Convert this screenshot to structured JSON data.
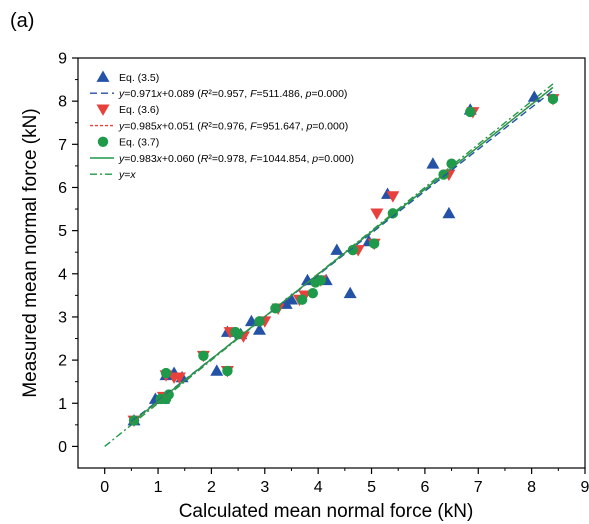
{
  "panel_label": "(a)",
  "colors": {
    "eq35": "#2452a6",
    "eq36": "#e8413c",
    "eq37": "#1f9a4a",
    "yx": "#1f9a4a",
    "axis": "#000000"
  },
  "chart_data": {
    "type": "scatter",
    "title": "",
    "xlabel": "Calculated mean normal force (kN)",
    "ylabel": "Measured mean normal force (kN)",
    "xlim": [
      -0.5,
      9
    ],
    "ylim": [
      -0.5,
      9
    ],
    "xticks": [
      "0",
      "1",
      "2",
      "3",
      "4",
      "5",
      "6",
      "7",
      "8",
      "9"
    ],
    "yticks": [
      "0",
      "1",
      "2",
      "3",
      "4",
      "5",
      "6",
      "7",
      "8",
      "9"
    ],
    "grid": false,
    "legend_position": "top-left",
    "series": [
      {
        "name": "Eq. (3.5)",
        "marker": "triangle-up",
        "color": "#2452a6",
        "fit_label": "y=0.971x+0.089 (R²=0.957, F=511.486, p=0.000)",
        "fit": {
          "slope": 0.971,
          "intercept": 0.089,
          "x_range": [
            0.5,
            8.4
          ],
          "style": "dashed"
        },
        "points": [
          [
            0.55,
            0.6
          ],
          [
            0.95,
            1.1
          ],
          [
            1.1,
            1.1
          ],
          [
            1.15,
            1.65
          ],
          [
            1.3,
            1.7
          ],
          [
            1.45,
            1.6
          ],
          [
            2.1,
            1.75
          ],
          [
            2.3,
            2.65
          ],
          [
            2.55,
            2.6
          ],
          [
            2.75,
            2.9
          ],
          [
            2.9,
            2.7
          ],
          [
            3.4,
            3.3
          ],
          [
            3.5,
            3.4
          ],
          [
            3.8,
            3.85
          ],
          [
            4.15,
            3.85
          ],
          [
            4.35,
            4.55
          ],
          [
            4.6,
            3.55
          ],
          [
            4.95,
            4.75
          ],
          [
            5.3,
            5.85
          ],
          [
            6.15,
            6.55
          ],
          [
            6.45,
            5.4
          ],
          [
            6.85,
            7.8
          ],
          [
            8.05,
            8.1
          ]
        ]
      },
      {
        "name": "Eq. (3.6)",
        "marker": "triangle-down",
        "color": "#e8413c",
        "fit_label": "y=0.985x+0.051 (R²=0.976, F=951.647, p=0.000)",
        "fit": {
          "slope": 0.985,
          "intercept": 0.051,
          "x_range": [
            0.5,
            8.4
          ],
          "style": "dotted"
        },
        "points": [
          [
            0.55,
            0.6
          ],
          [
            1.1,
            1.15
          ],
          [
            1.15,
            1.65
          ],
          [
            1.3,
            1.6
          ],
          [
            1.4,
            1.6
          ],
          [
            1.85,
            2.1
          ],
          [
            2.3,
            1.75
          ],
          [
            2.35,
            2.65
          ],
          [
            2.6,
            2.55
          ],
          [
            3.0,
            2.9
          ],
          [
            3.25,
            3.2
          ],
          [
            3.65,
            3.4
          ],
          [
            3.75,
            3.5
          ],
          [
            4.05,
            3.85
          ],
          [
            4.75,
            4.55
          ],
          [
            5.05,
            4.7
          ],
          [
            5.1,
            5.4
          ],
          [
            5.4,
            5.8
          ],
          [
            6.45,
            6.3
          ],
          [
            6.9,
            7.75
          ],
          [
            8.4,
            8.05
          ]
        ]
      },
      {
        "name": "Eq. (3.7)",
        "marker": "circle",
        "color": "#1f9a4a",
        "fit_label": "y=0.983x+0.060 (R²=0.978, F=1044.854, p=0.000)",
        "fit": {
          "slope": 0.983,
          "intercept": 0.06,
          "x_range": [
            0.5,
            8.4
          ],
          "style": "solid"
        },
        "points": [
          [
            0.55,
            0.6
          ],
          [
            1.05,
            1.1
          ],
          [
            1.15,
            1.1
          ],
          [
            1.2,
            1.2
          ],
          [
            1.15,
            1.7
          ],
          [
            1.85,
            2.1
          ],
          [
            2.3,
            1.75
          ],
          [
            2.45,
            2.65
          ],
          [
            2.5,
            2.6
          ],
          [
            2.9,
            2.9
          ],
          [
            3.2,
            3.2
          ],
          [
            3.7,
            3.4
          ],
          [
            3.9,
            3.55
          ],
          [
            3.95,
            3.8
          ],
          [
            4.05,
            3.85
          ],
          [
            4.65,
            4.55
          ],
          [
            5.05,
            4.7
          ],
          [
            5.4,
            5.4
          ],
          [
            6.35,
            6.3
          ],
          [
            6.5,
            6.55
          ],
          [
            6.85,
            7.75
          ],
          [
            8.4,
            8.05
          ]
        ]
      }
    ],
    "reference_line": {
      "name": "y=x",
      "slope": 1,
      "intercept": 0,
      "x_range": [
        0,
        8.4
      ],
      "style": "dash-dot"
    }
  }
}
